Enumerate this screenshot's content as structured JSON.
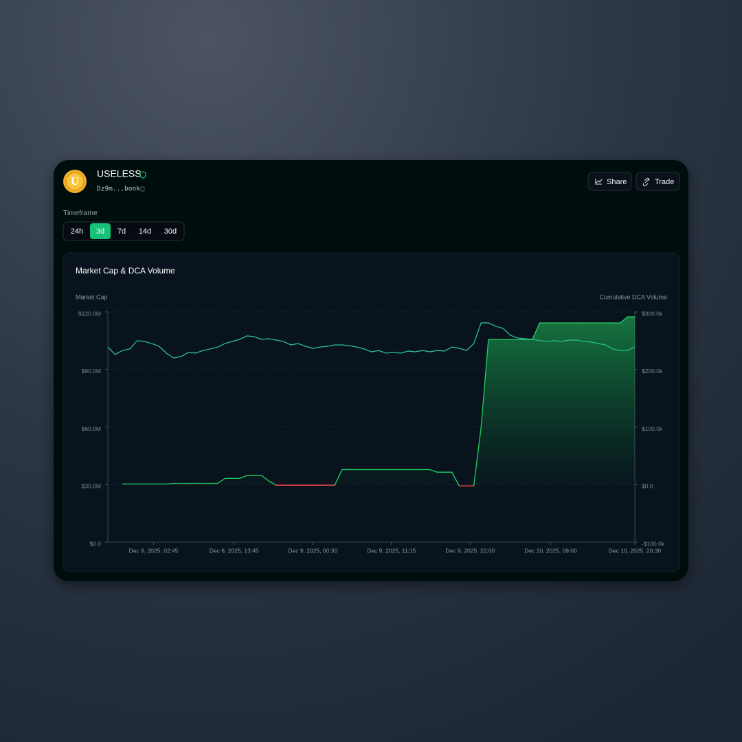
{
  "header": {
    "logo_letter": "U",
    "title": "USELESS",
    "address": "Dz9m...bonk",
    "buttons": [
      "Share",
      "Trade"
    ]
  },
  "timeframe": {
    "label": "Timeframe",
    "options": [
      "24h",
      "3d",
      "7d",
      "14d",
      "30d"
    ],
    "selected": 1
  },
  "chart_data": {
    "type": "line",
    "title": "Market Cap & DCA Volume",
    "x": [
      "2025-12-07T20:30",
      "2025-12-07T21:30",
      "2025-12-07T22:30",
      "2025-12-07T23:30",
      "2025-12-08T00:30",
      "2025-12-08T01:30",
      "2025-12-08T02:30",
      "2025-12-08T03:30",
      "2025-12-08T04:30",
      "2025-12-08T05:30",
      "2025-12-08T06:30",
      "2025-12-08T07:30",
      "2025-12-08T08:30",
      "2025-12-08T09:30",
      "2025-12-08T10:30",
      "2025-12-08T11:30",
      "2025-12-08T12:30",
      "2025-12-08T13:30",
      "2025-12-08T14:30",
      "2025-12-08T15:30",
      "2025-12-08T16:30",
      "2025-12-08T17:30",
      "2025-12-08T18:30",
      "2025-12-08T19:30",
      "2025-12-08T20:30",
      "2025-12-08T21:30",
      "2025-12-08T22:30",
      "2025-12-08T23:30",
      "2025-12-09T00:30",
      "2025-12-09T01:30",
      "2025-12-09T02:30",
      "2025-12-09T03:30",
      "2025-12-09T04:30",
      "2025-12-09T05:30",
      "2025-12-09T06:30",
      "2025-12-09T07:30",
      "2025-12-09T08:30",
      "2025-12-09T09:30",
      "2025-12-09T10:30",
      "2025-12-09T11:30",
      "2025-12-09T12:30",
      "2025-12-09T13:30",
      "2025-12-09T14:30",
      "2025-12-09T15:30",
      "2025-12-09T16:30",
      "2025-12-09T17:30",
      "2025-12-09T18:30",
      "2025-12-09T19:30",
      "2025-12-09T20:30",
      "2025-12-09T21:30",
      "2025-12-09T22:30",
      "2025-12-09T23:30",
      "2025-12-10T00:30",
      "2025-12-10T01:30",
      "2025-12-10T02:30",
      "2025-12-10T03:30",
      "2025-12-10T04:30",
      "2025-12-10T05:30",
      "2025-12-10T06:30",
      "2025-12-10T07:30",
      "2025-12-10T08:30",
      "2025-12-10T09:30",
      "2025-12-10T10:30",
      "2025-12-10T11:30",
      "2025-12-10T12:30",
      "2025-12-10T13:30",
      "2025-12-10T14:30",
      "2025-12-10T15:30",
      "2025-12-10T16:30",
      "2025-12-10T17:30",
      "2025-12-10T18:30",
      "2025-12-10T19:30",
      "2025-12-10T20:30"
    ],
    "series": [
      {
        "name": "Market Cap",
        "color": "#2bbfa4",
        "axis": "y",
        "values": [
          101700000,
          97800000,
          99900000,
          100700000,
          105000000,
          104600000,
          103500000,
          102100000,
          98500000,
          96000000,
          96700000,
          98900000,
          98500000,
          99900000,
          100700000,
          101700000,
          103500000,
          104600000,
          105700000,
          107500000,
          107100000,
          105700000,
          106000000,
          105300000,
          104600000,
          102800000,
          103500000,
          102100000,
          101000000,
          101700000,
          102100000,
          102800000,
          102800000,
          102400000,
          101700000,
          100700000,
          99200000,
          99900000,
          98500000,
          98900000,
          98500000,
          99600000,
          99200000,
          99900000,
          99200000,
          99900000,
          99600000,
          101700000,
          101000000,
          99900000,
          103500000,
          114300000,
          114300000,
          112500000,
          111400000,
          107800000,
          106400000,
          106000000,
          105700000,
          105000000,
          104600000,
          105000000,
          104600000,
          105300000,
          105300000,
          104600000,
          104300000,
          103500000,
          102800000,
          100700000,
          99900000,
          99900000,
          101700000
        ]
      },
      {
        "name": "Cumulative DCA Volume",
        "color": "#22c55e",
        "negative_color": "#ef4444",
        "axis": "y2",
        "values": [
          null,
          null,
          1000,
          1000,
          1000,
          1000,
          1000,
          1000,
          1000,
          2000,
          2000,
          2000,
          2000,
          2000,
          2000,
          2000,
          10700,
          10700,
          10700,
          15500,
          15500,
          15500,
          6000,
          -1200,
          -1200,
          -1200,
          -1200,
          -1200,
          -1200,
          -1200,
          -1200,
          -1200,
          26000,
          26000,
          26000,
          26000,
          26000,
          26000,
          26000,
          26000,
          26000,
          26000,
          26000,
          26000,
          26000,
          21500,
          21500,
          21500,
          -2400,
          -2400,
          -2400,
          100000,
          252000,
          252000,
          252000,
          252000,
          252000,
          252000,
          252000,
          280800,
          280800,
          280800,
          280800,
          280800,
          280800,
          280800,
          280800,
          280800,
          280800,
          280800,
          280800,
          291500,
          291500
        ]
      }
    ],
    "xlim": [
      "2025-12-07T20:30",
      "2025-12-10T20:30"
    ],
    "xticks": [
      {
        "value": "2025-12-08T02:45",
        "label": "Dec 8, 2025, 02:45"
      },
      {
        "value": "2025-12-08T13:45",
        "label": "Dec 8, 2025, 13:45"
      },
      {
        "value": "2025-12-09T00:30",
        "label": "Dec 9, 2025, 00:30"
      },
      {
        "value": "2025-12-09T11:15",
        "label": "Dec 9, 2025, 11:15"
      },
      {
        "value": "2025-12-09T22:00",
        "label": "Dec 9, 2025, 22:00"
      },
      {
        "value": "2025-12-10T09:00",
        "label": "Dec 10, 2025, 09:00"
      },
      {
        "value": "2025-12-10T20:30",
        "label": "Dec 10, 2025, 20:30"
      }
    ],
    "ylim": [
      0,
      120000000
    ],
    "yticks": [
      {
        "value": 0,
        "label": "$0.0"
      },
      {
        "value": 30000000,
        "label": "$30.0M"
      },
      {
        "value": 60000000,
        "label": "$60.0M"
      },
      {
        "value": 90000000,
        "label": "$90.0M"
      },
      {
        "value": 120000000,
        "label": "$120.0M"
      }
    ],
    "y2lim": [
      -100000,
      300000
    ],
    "y2ticks": [
      {
        "value": -100000,
        "label": "-$100.0k"
      },
      {
        "value": 0,
        "label": "$0.0"
      },
      {
        "value": 100000,
        "label": "$100.0k"
      },
      {
        "value": 200000,
        "label": "$200.0k"
      },
      {
        "value": 300000,
        "label": "$300.0k"
      }
    ],
    "grid": true
  }
}
